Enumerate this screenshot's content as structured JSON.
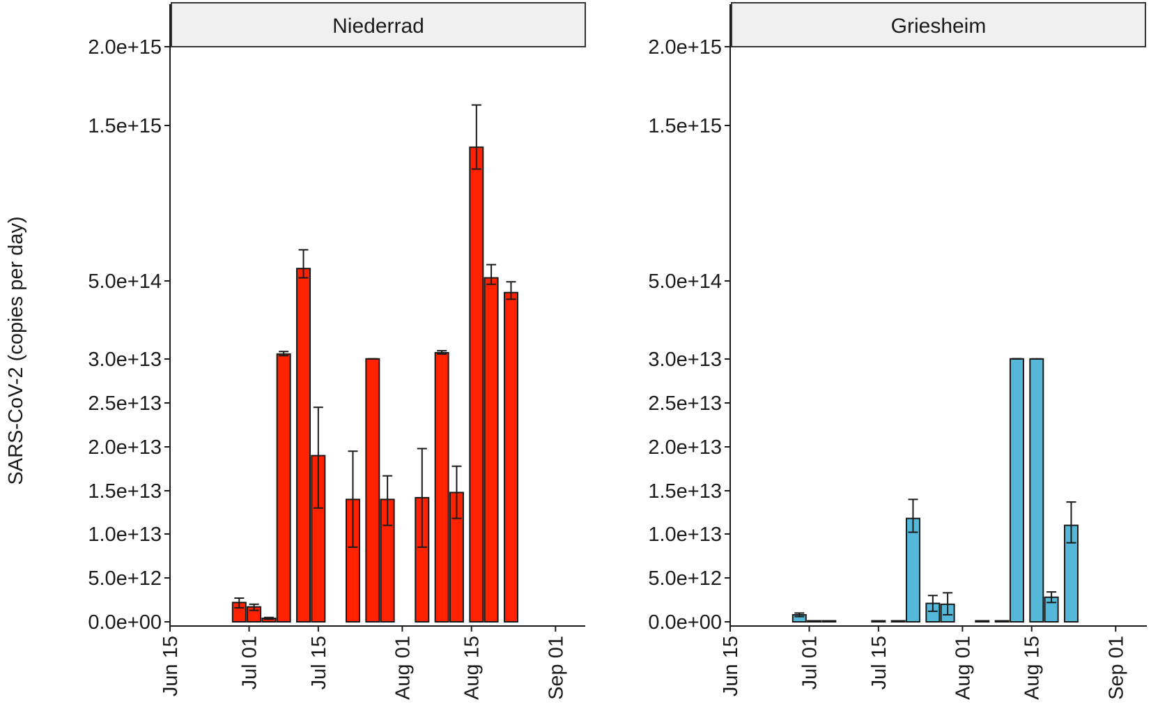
{
  "chart_data": {
    "type": "bar",
    "ylabel": "SARS-CoV-2 (copies per day)",
    "y_scale": "piecewise: linear 0 to 3.0e+13, compressed above 3.0e+13",
    "y_ticks": [
      {
        "value": 0,
        "label": "0.0e+00"
      },
      {
        "value": 5000000000000.0,
        "label": "5.0e+12"
      },
      {
        "value": 10000000000000.0,
        "label": "1.0e+13"
      },
      {
        "value": 15000000000000.0,
        "label": "1.5e+13"
      },
      {
        "value": 20000000000000.0,
        "label": "2.0e+13"
      },
      {
        "value": 25000000000000.0,
        "label": "2.5e+13"
      },
      {
        "value": 30000000000000.0,
        "label": "3.0e+13"
      },
      {
        "value": 500000000000000.0,
        "label": "5.0e+14"
      },
      {
        "value": 1500000000000000.0,
        "label": "1.5e+15"
      },
      {
        "value": 2000000000000000.0,
        "label": "2.0e+15"
      }
    ],
    "x_ticks": [
      {
        "date": "2020-06-15",
        "label": "Jun 15"
      },
      {
        "date": "2020-07-01",
        "label": "Jul 01"
      },
      {
        "date": "2020-07-15",
        "label": "Jul 15"
      },
      {
        "date": "2020-08-01",
        "label": "Aug 01"
      },
      {
        "date": "2020-08-15",
        "label": "Aug 15"
      },
      {
        "date": "2020-09-01",
        "label": "Sep 01"
      }
    ],
    "xlim": [
      "2020-06-15",
      "2020-09-04"
    ],
    "grid": false,
    "legend": "none",
    "panels": [
      {
        "title": "Niederrad",
        "color": "#ff2200",
        "bars": [
          {
            "date": "2020-06-29",
            "value": 2200000000000.0,
            "err_low": 1600000000000.0,
            "err_high": 2700000000000.0
          },
          {
            "date": "2020-07-02",
            "value": 1700000000000.0,
            "err_low": 1300000000000.0,
            "err_high": 2000000000000.0
          },
          {
            "date": "2020-07-05",
            "value": 400000000000.0,
            "err_low": 300000000000.0,
            "err_high": 500000000000.0
          },
          {
            "date": "2020-07-08",
            "value": 60000000000000.0,
            "err_low": 50000000000000.0,
            "err_high": 75000000000000.0
          },
          {
            "date": "2020-07-12",
            "value": 580000000000000.0,
            "err_low": 520000000000000.0,
            "err_high": 700000000000000.0
          },
          {
            "date": "2020-07-15",
            "value": 19000000000000.0,
            "err_low": 13000000000000.0,
            "err_high": 24500000000000.0
          },
          {
            "date": "2020-07-22",
            "value": 14000000000000.0,
            "err_low": 8500000000000.0,
            "err_high": 19500000000000.0
          },
          {
            "date": "2020-07-26",
            "value": 31000000000000.0,
            "err_low": 30500000000000.0,
            "err_high": 31500000000000.0
          },
          {
            "date": "2020-07-29",
            "value": 14000000000000.0,
            "err_low": 11000000000000.0,
            "err_high": 16700000000000.0
          },
          {
            "date": "2020-08-05",
            "value": 14200000000000.0,
            "err_low": 8500000000000.0,
            "err_high": 19800000000000.0
          },
          {
            "date": "2020-08-09",
            "value": 68000000000000.0,
            "err_low": 60000000000000.0,
            "err_high": 80000000000000.0
          },
          {
            "date": "2020-08-12",
            "value": 14800000000000.0,
            "err_low": 11800000000000.0,
            "err_high": 17800000000000.0
          },
          {
            "date": "2020-08-16",
            "value": 1360000000000000.0,
            "err_low": 1220000000000000.0,
            "err_high": 1630000000000000.0
          },
          {
            "date": "2020-08-19",
            "value": 520000000000000.0,
            "err_low": 480000000000000.0,
            "err_high": 605000000000000.0
          },
          {
            "date": "2020-08-23",
            "value": 430000000000000.0,
            "err_low": 390000000000000.0,
            "err_high": 495000000000000.0
          }
        ]
      },
      {
        "title": "Griesheim",
        "color": "#56b8d8",
        "bars": [
          {
            "date": "2020-06-29",
            "value": 800000000000.0,
            "err_low": 600000000000.0,
            "err_high": 1000000000000.0
          },
          {
            "date": "2020-07-02",
            "value": 0,
            "err_low": 0,
            "err_high": 0
          },
          {
            "date": "2020-07-05",
            "value": 0,
            "err_low": 0,
            "err_high": 0
          },
          {
            "date": "2020-07-15",
            "value": 0,
            "err_low": 0,
            "err_high": 0
          },
          {
            "date": "2020-07-19",
            "value": 0,
            "err_low": 0,
            "err_high": 0
          },
          {
            "date": "2020-07-22",
            "value": 11800000000000.0,
            "err_low": 10200000000000.0,
            "err_high": 14000000000000.0
          },
          {
            "date": "2020-07-26",
            "value": 2100000000000.0,
            "err_low": 1200000000000.0,
            "err_high": 3000000000000.0
          },
          {
            "date": "2020-07-29",
            "value": 2000000000000.0,
            "err_low": 800000000000.0,
            "err_high": 3300000000000.0
          },
          {
            "date": "2020-08-05",
            "value": 0,
            "err_low": 0,
            "err_high": 0
          },
          {
            "date": "2020-08-09",
            "value": 0,
            "err_low": 0,
            "err_high": 0
          },
          {
            "date": "2020-08-12",
            "value": 31000000000000.0,
            "err_low": 30000000000000.0,
            "err_high": 32000000000000.0
          },
          {
            "date": "2020-08-16",
            "value": 30800000000000.0,
            "err_low": 30200000000000.0,
            "err_high": 31200000000000.0
          },
          {
            "date": "2020-08-19",
            "value": 2800000000000.0,
            "err_low": 2200000000000.0,
            "err_high": 3400000000000.0
          },
          {
            "date": "2020-08-23",
            "value": 11000000000000.0,
            "err_low": 9000000000000.0,
            "err_high": 13700000000000.0
          }
        ]
      }
    ]
  }
}
